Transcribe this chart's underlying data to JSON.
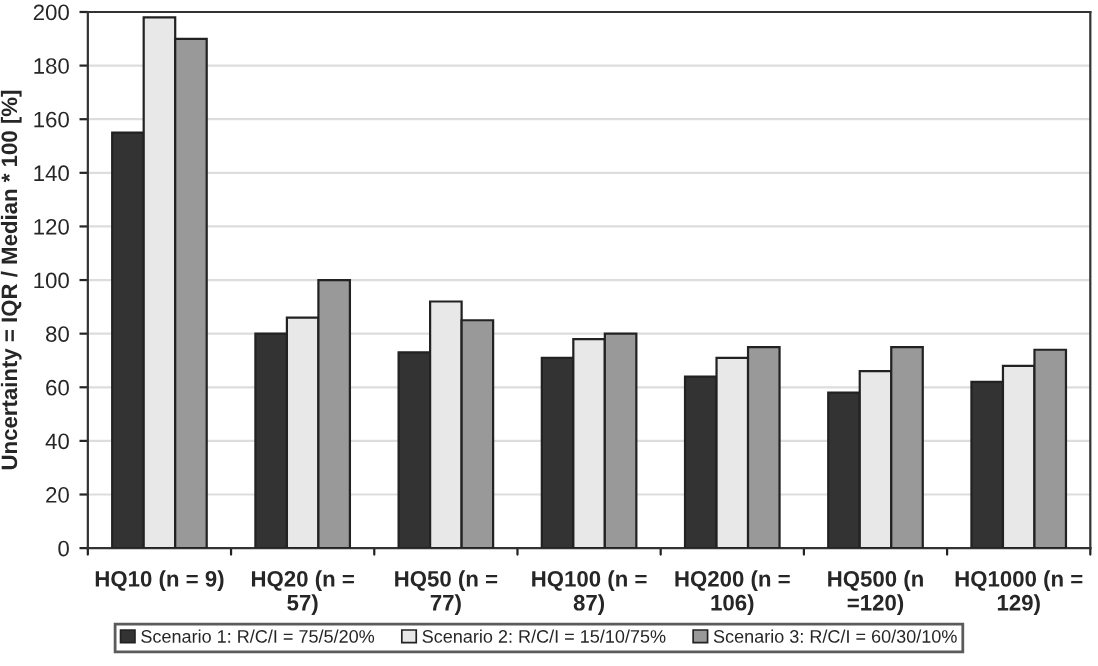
{
  "chart_data": {
    "type": "bar",
    "ylabel": "Uncertainty = IQR / Median * 100 [%]",
    "categories": [
      "HQ10 (n = 9)",
      "HQ20 (n =\n57)",
      "HQ50 (n =\n77)",
      "HQ100 (n =\n87)",
      "HQ200 (n =\n106)",
      "HQ500 (n\n=120)",
      "HQ1000 (n =\n129)"
    ],
    "series": [
      {
        "name": "Scenario 1: R/C/I = 75/5/20%",
        "color": "#333333",
        "values": [
          155,
          80,
          73,
          71,
          64,
          58,
          62
        ]
      },
      {
        "name": "Scenario 2: R/C/I = 15/10/75%",
        "color": "#e8e8e8",
        "values": [
          198,
          86,
          92,
          78,
          71,
          66,
          68
        ]
      },
      {
        "name": "Scenario 3: R/C/I = 60/30/10%",
        "color": "#999999",
        "values": [
          190,
          100,
          85,
          80,
          75,
          75,
          74
        ]
      }
    ],
    "ylim": [
      0,
      200
    ],
    "yticks": [
      0,
      20,
      40,
      60,
      80,
      100,
      120,
      140,
      160,
      180,
      200
    ],
    "grid": "y",
    "legend": "bottom"
  }
}
